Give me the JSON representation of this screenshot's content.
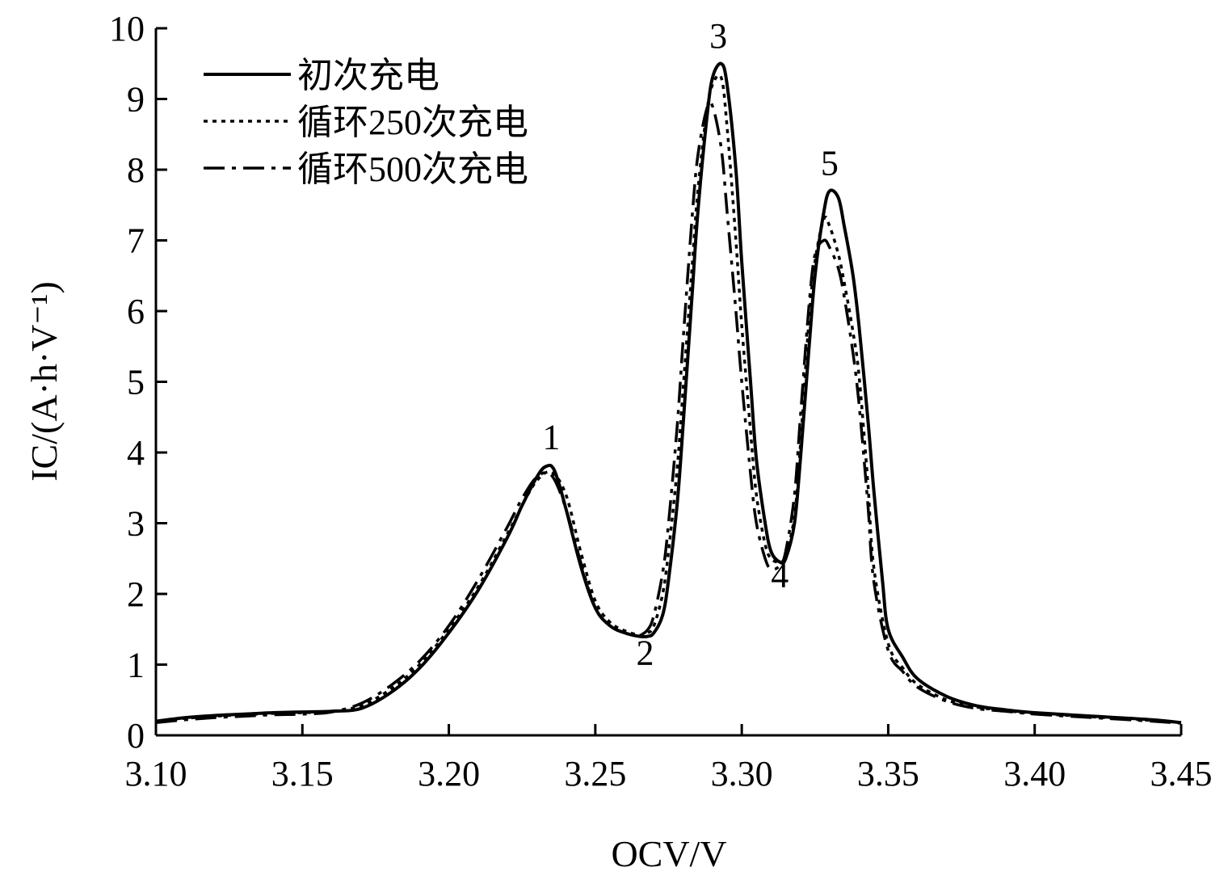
{
  "chart_data": {
    "type": "line",
    "xlabel": "OCV/V",
    "ylabel": "IC/(A·h·V⁻¹)",
    "xlim": [
      3.1,
      3.45
    ],
    "ylim": [
      0,
      10
    ],
    "xticks": [
      {
        "value": 3.1,
        "label": "3.10"
      },
      {
        "value": 3.15,
        "label": "3.15"
      },
      {
        "value": 3.2,
        "label": "3.20"
      },
      {
        "value": 3.25,
        "label": "3.25"
      },
      {
        "value": 3.3,
        "label": "3.30"
      },
      {
        "value": 3.35,
        "label": "3.35"
      },
      {
        "value": 3.4,
        "label": "3.40"
      },
      {
        "value": 3.45,
        "label": "3.45"
      }
    ],
    "yticks": [
      {
        "value": 0,
        "label": "0"
      },
      {
        "value": 1,
        "label": "1"
      },
      {
        "value": 2,
        "label": "2"
      },
      {
        "value": 3,
        "label": "3"
      },
      {
        "value": 4,
        "label": "4"
      },
      {
        "value": 5,
        "label": "5"
      },
      {
        "value": 6,
        "label": "6"
      },
      {
        "value": 7,
        "label": "7"
      },
      {
        "value": 8,
        "label": "8"
      },
      {
        "value": 9,
        "label": "9"
      },
      {
        "value": 10,
        "label": "10"
      }
    ],
    "grid": false,
    "legend_position": "top-left",
    "series": [
      {
        "name": "初次充电",
        "style": "solid",
        "color": "#000000",
        "x": [
          3.1,
          3.11,
          3.12,
          3.13,
          3.14,
          3.15,
          3.16,
          3.17,
          3.18,
          3.19,
          3.2,
          3.21,
          3.22,
          3.225,
          3.23,
          3.233,
          3.236,
          3.24,
          3.245,
          3.25,
          3.255,
          3.26,
          3.265,
          3.268,
          3.27,
          3.273,
          3.275,
          3.278,
          3.28,
          3.283,
          3.285,
          3.288,
          3.29,
          3.293,
          3.295,
          3.298,
          3.3,
          3.303,
          3.305,
          3.308,
          3.31,
          3.313,
          3.315,
          3.318,
          3.32,
          3.323,
          3.325,
          3.328,
          3.33,
          3.333,
          3.335,
          3.338,
          3.34,
          3.343,
          3.345,
          3.348,
          3.35,
          3.355,
          3.36,
          3.37,
          3.38,
          3.39,
          3.4,
          3.42,
          3.44,
          3.45
        ],
        "y": [
          0.2,
          0.25,
          0.28,
          0.3,
          0.32,
          0.33,
          0.34,
          0.38,
          0.6,
          0.95,
          1.45,
          2.05,
          2.8,
          3.25,
          3.65,
          3.8,
          3.75,
          3.2,
          2.4,
          1.8,
          1.55,
          1.45,
          1.4,
          1.4,
          1.45,
          1.7,
          2.2,
          3.3,
          4.4,
          6.2,
          7.4,
          8.7,
          9.3,
          9.5,
          9.2,
          8.0,
          6.7,
          5.0,
          3.9,
          3.0,
          2.6,
          2.45,
          2.5,
          3.0,
          3.9,
          5.5,
          6.5,
          7.4,
          7.7,
          7.6,
          7.2,
          6.5,
          5.8,
          4.5,
          3.5,
          2.2,
          1.5,
          1.1,
          0.8,
          0.55,
          0.42,
          0.36,
          0.32,
          0.27,
          0.22,
          0.18
        ]
      },
      {
        "name": "循环250次充电",
        "style": "dotted",
        "color": "#000000",
        "x": [
          3.1,
          3.11,
          3.12,
          3.13,
          3.14,
          3.15,
          3.16,
          3.17,
          3.18,
          3.19,
          3.2,
          3.21,
          3.22,
          3.225,
          3.23,
          3.235,
          3.24,
          3.245,
          3.25,
          3.255,
          3.26,
          3.265,
          3.268,
          3.27,
          3.273,
          3.275,
          3.278,
          3.28,
          3.283,
          3.285,
          3.288,
          3.29,
          3.293,
          3.295,
          3.298,
          3.3,
          3.303,
          3.305,
          3.308,
          3.31,
          3.313,
          3.315,
          3.318,
          3.32,
          3.323,
          3.325,
          3.328,
          3.33,
          3.333,
          3.335,
          3.338,
          3.34,
          3.343,
          3.345,
          3.35,
          3.355,
          3.36,
          3.37,
          3.38,
          3.39,
          3.4,
          3.42,
          3.44,
          3.45
        ],
        "y": [
          0.2,
          0.24,
          0.27,
          0.29,
          0.31,
          0.32,
          0.34,
          0.42,
          0.65,
          1.0,
          1.5,
          2.1,
          2.85,
          3.25,
          3.6,
          3.72,
          3.4,
          2.6,
          1.9,
          1.6,
          1.48,
          1.42,
          1.45,
          1.55,
          2.0,
          2.6,
          3.8,
          4.9,
          6.6,
          7.7,
          8.8,
          9.2,
          9.3,
          8.6,
          7.0,
          5.8,
          4.3,
          3.4,
          2.7,
          2.5,
          2.45,
          2.55,
          3.1,
          4.1,
          5.9,
          6.7,
          7.3,
          7.2,
          6.8,
          6.4,
          5.7,
          5.1,
          3.6,
          2.4,
          1.3,
          0.95,
          0.72,
          0.5,
          0.4,
          0.35,
          0.31,
          0.26,
          0.21,
          0.18
        ]
      },
      {
        "name": "循环500次充电",
        "style": "dashdot",
        "color": "#000000",
        "x": [
          3.1,
          3.11,
          3.12,
          3.13,
          3.14,
          3.15,
          3.16,
          3.17,
          3.18,
          3.19,
          3.2,
          3.21,
          3.22,
          3.225,
          3.23,
          3.235,
          3.24,
          3.245,
          3.25,
          3.255,
          3.26,
          3.265,
          3.268,
          3.27,
          3.273,
          3.275,
          3.278,
          3.28,
          3.283,
          3.285,
          3.288,
          3.29,
          3.293,
          3.295,
          3.298,
          3.3,
          3.303,
          3.305,
          3.308,
          3.31,
          3.313,
          3.315,
          3.318,
          3.32,
          3.323,
          3.325,
          3.328,
          3.33,
          3.333,
          3.335,
          3.338,
          3.34,
          3.343,
          3.345,
          3.35,
          3.355,
          3.36,
          3.37,
          3.38,
          3.39,
          3.4,
          3.42,
          3.44,
          3.45
        ],
        "y": [
          0.18,
          0.22,
          0.25,
          0.27,
          0.29,
          0.3,
          0.33,
          0.45,
          0.7,
          1.05,
          1.55,
          2.2,
          2.95,
          3.35,
          3.65,
          3.68,
          3.2,
          2.45,
          1.8,
          1.55,
          1.45,
          1.42,
          1.5,
          1.7,
          2.3,
          3.0,
          4.4,
          5.6,
          7.3,
          8.2,
          8.85,
          8.9,
          8.3,
          7.4,
          6.0,
          5.0,
          3.7,
          3.0,
          2.5,
          2.35,
          2.4,
          2.6,
          3.4,
          4.5,
          6.1,
          6.8,
          7.0,
          6.9,
          6.6,
          6.2,
          5.4,
          4.7,
          3.3,
          2.2,
          1.2,
          0.9,
          0.68,
          0.48,
          0.38,
          0.34,
          0.3,
          0.25,
          0.2,
          0.17
        ]
      }
    ],
    "annotations": [
      {
        "text": "1",
        "x": 3.235,
        "y": 3.8
      },
      {
        "text": "2",
        "x": 3.267,
        "y": 1.0
      },
      {
        "text": "3",
        "x": 3.292,
        "y": 9.5
      },
      {
        "text": "4",
        "x": 3.313,
        "y": 2.1
      },
      {
        "text": "5",
        "x": 3.33,
        "y": 7.7
      }
    ]
  }
}
